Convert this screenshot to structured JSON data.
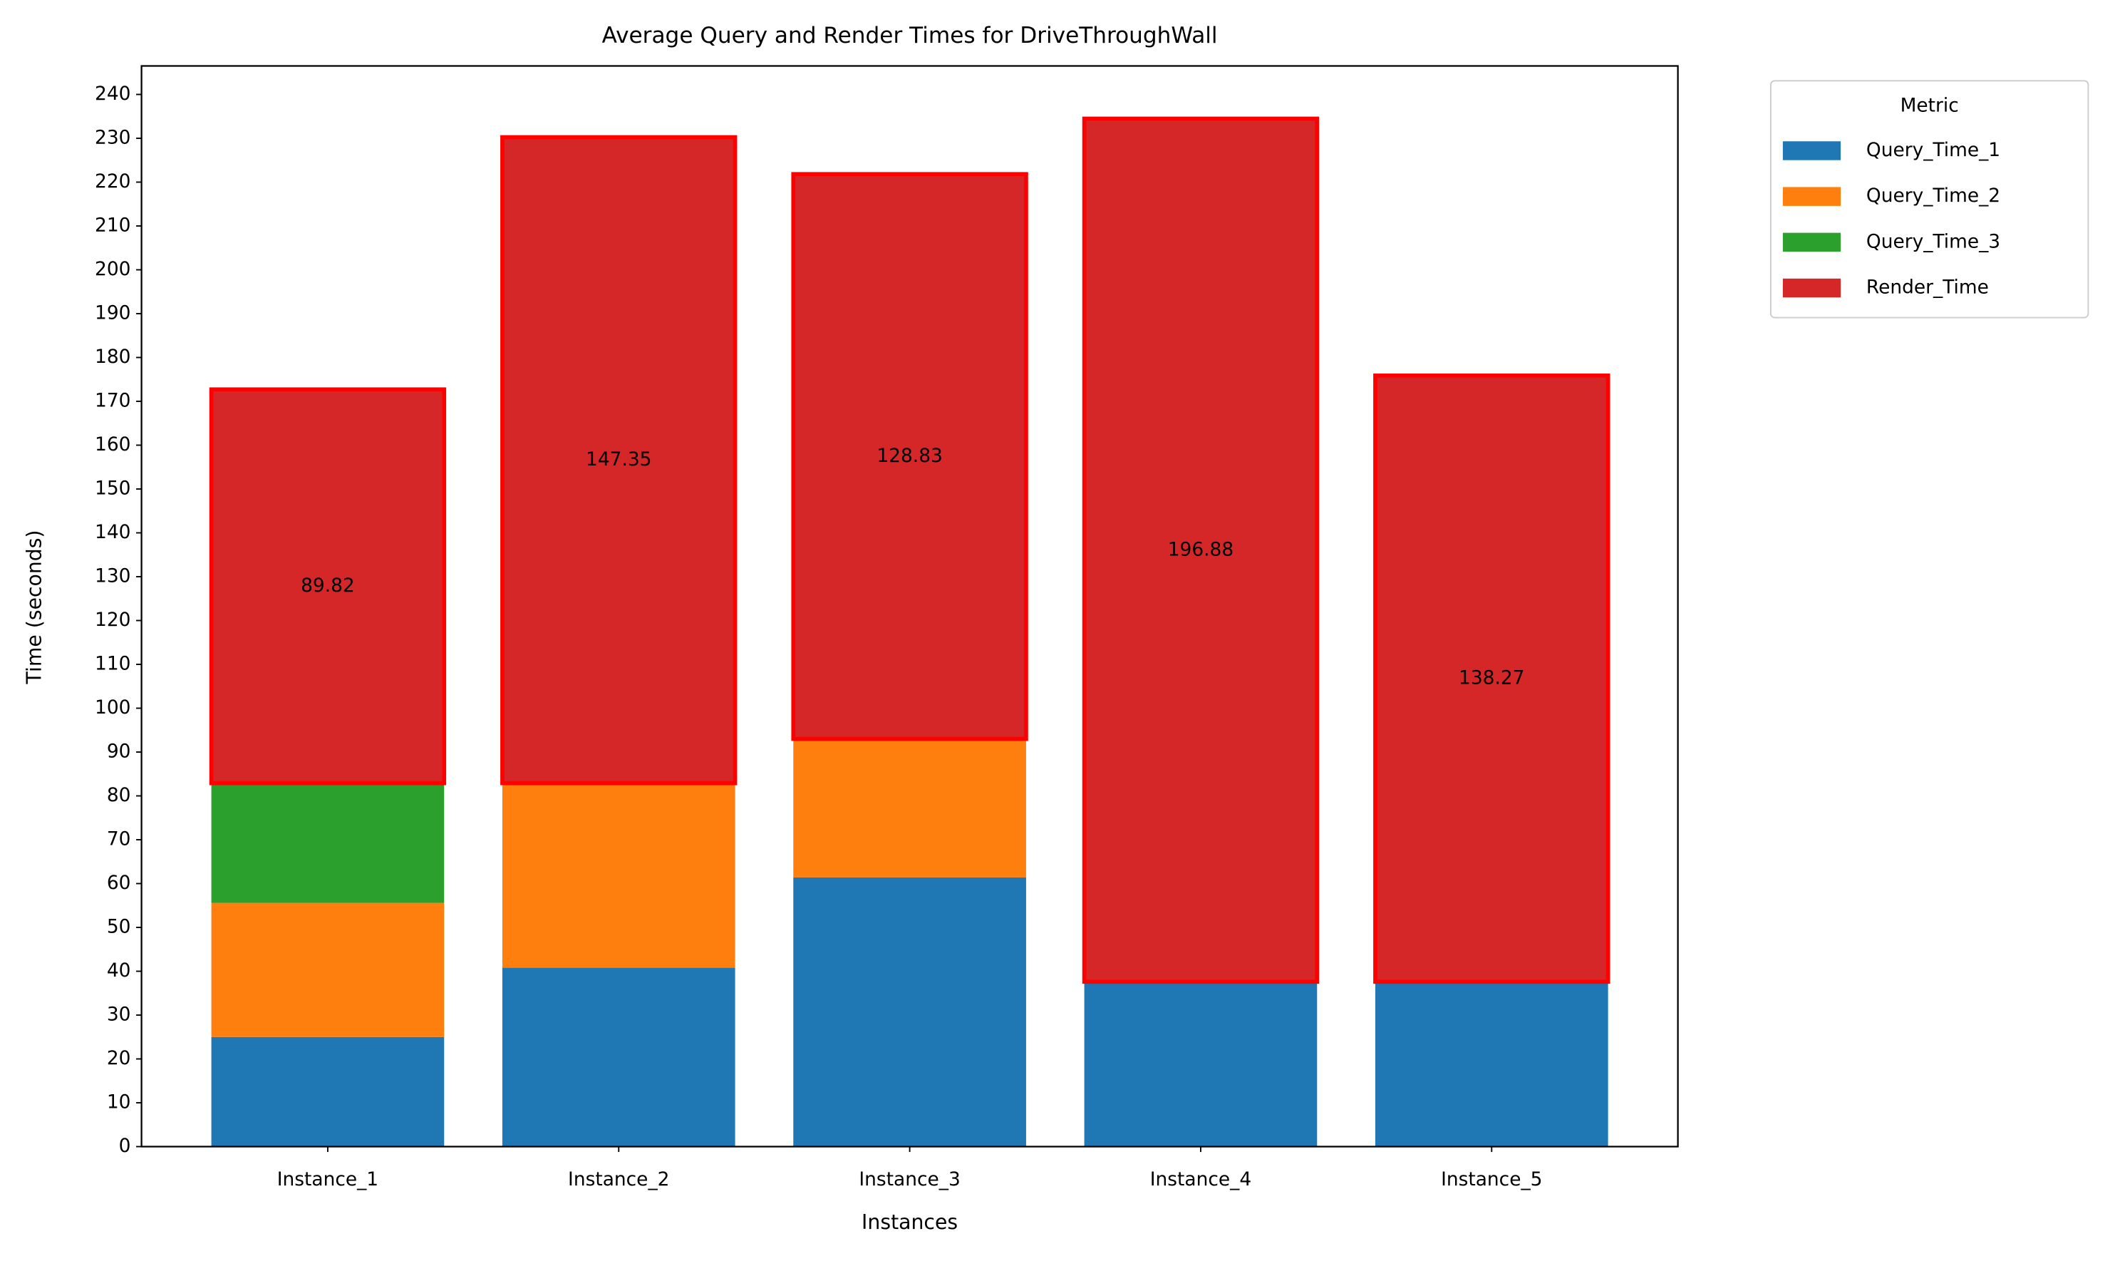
{
  "chart_data": {
    "type": "stacked-bar",
    "title": "Average Query and Render Times for DriveThroughWall",
    "x_label": "Instances",
    "y_label": "Time (seconds)",
    "categories": [
      "Instance_1",
      "Instance_2",
      "Instance_3",
      "Instance_4",
      "Instance_5"
    ],
    "series": [
      {
        "name": "Query_Time_1",
        "color": "#1f77b4",
        "values": [
          25,
          40.8,
          61.4,
          37.6,
          37.6
        ]
      },
      {
        "name": "Query_Time_2",
        "color": "#ff7f0e",
        "values": [
          30.6,
          42.1,
          31.6,
          0,
          0
        ]
      },
      {
        "name": "Query_Time_3",
        "color": "#2ca02c",
        "values": [
          27.3,
          0,
          0,
          0,
          0
        ]
      },
      {
        "name": "Render_Time",
        "color": "#d62728",
        "edgecolor": "#ff0000",
        "data_labels": true,
        "values": [
          89.82,
          147.35,
          128.83,
          196.88,
          138.27
        ]
      }
    ],
    "ylim": [
      0,
      246.5
    ],
    "yticks": [
      0,
      10,
      20,
      30,
      40,
      50,
      60,
      70,
      80,
      90,
      100,
      110,
      120,
      130,
      140,
      150,
      160,
      170,
      180,
      190,
      200,
      210,
      220,
      230,
      240
    ],
    "grid": false,
    "legend_title": "Metric",
    "legend": "outside-upper-right"
  }
}
